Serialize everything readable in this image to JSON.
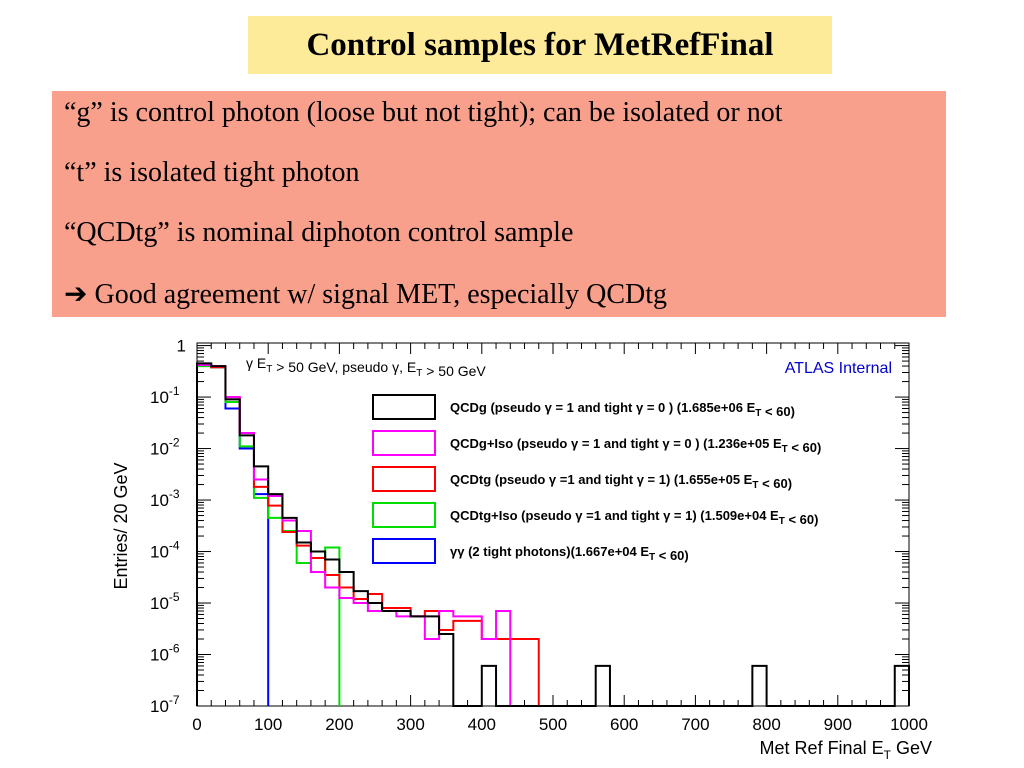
{
  "slide": {
    "title": "Control samples for MetRefFinal",
    "bullets": [
      "“g” is control photon (loose but not tight); can be isolated or not",
      "“t” is isolated tight photon",
      "“QCDtg” is nominal diphoton control sample",
      "Good agreement w/ signal MET, especially QCDtg"
    ],
    "arrow_glyph": "➔",
    "accent_colors": {
      "title_bg": "#fdeb9a",
      "box_bg": "#f9a08d"
    }
  },
  "chart_data": {
    "type": "step-histogram",
    "title": "",
    "annotation": "γ E_T > 50 GeV, pseudo γ, E_T > 50 GeV",
    "watermark": "ATLAS Internal",
    "xlabel": "Met Ref Final E_T GeV",
    "ylabel": "Entries/ 20 GeV",
    "xlim": [
      0,
      1000
    ],
    "ylim_log10": [
      -7,
      0.05
    ],
    "log_y": true,
    "bin_width": 20,
    "x_ticks": [
      0,
      100,
      200,
      300,
      400,
      500,
      600,
      700,
      800,
      900,
      1000
    ],
    "y_ticks": [
      {
        "exp": 0,
        "base": "1",
        "sup": ""
      },
      {
        "exp": -1,
        "base": "10",
        "sup": "-1"
      },
      {
        "exp": -2,
        "base": "10",
        "sup": "-2"
      },
      {
        "exp": -3,
        "base": "10",
        "sup": "-3"
      },
      {
        "exp": -4,
        "base": "10",
        "sup": "-4"
      },
      {
        "exp": -5,
        "base": "10",
        "sup": "-5"
      },
      {
        "exp": -6,
        "base": "10",
        "sup": "-6"
      },
      {
        "exp": -7,
        "base": "10",
        "sup": "-7"
      }
    ],
    "legend_position": "top-right",
    "series": [
      {
        "name": "QCDg (pseudo γ = 1 and tight γ = 0 ) (1.685e+06  E_T < 60)",
        "color": "#000000",
        "values": [
          0.45,
          0.4,
          0.09,
          0.018,
          0.0045,
          0.0013,
          0.00045,
          0.00015,
          0.0001,
          7e-05,
          4e-05,
          1.7e-05,
          1e-05,
          7e-06,
          7e-06,
          5.5e-06,
          5.5e-06,
          2.5e-06,
          0,
          0,
          6e-07,
          0,
          0,
          0,
          0,
          0,
          0,
          0,
          6e-07,
          0,
          0,
          0,
          0,
          0,
          0,
          0,
          0,
          0,
          0,
          6e-07,
          0,
          0,
          0,
          0,
          0,
          0,
          0,
          0,
          0,
          6e-07
        ]
      },
      {
        "name": "QCDg+Iso (pseudo γ = 1 and tight γ = 0 ) (1.236e+05  E_T < 60)",
        "color": "#ff00ff",
        "values": [
          0.42,
          0.4,
          0.1,
          0.02,
          0.0025,
          0.0012,
          0.0004,
          0.00025,
          4e-05,
          2e-05,
          1.25e-05,
          1e-05,
          7e-06,
          7e-06,
          5.5e-06,
          5.5e-06,
          2e-06,
          7e-06,
          5.5e-06,
          5.5e-06,
          2e-06,
          7e-06
        ]
      },
      {
        "name": "QCDtg (pseudo γ =1 and tight γ = 1)  (1.655e+05  E_T < 60)",
        "color": "#ff0000",
        "values": [
          0.42,
          0.38,
          0.1,
          0.02,
          0.0018,
          0.00078,
          0.00024,
          0.00013,
          7.5e-05,
          3.5e-05,
          2e-05,
          1.2e-05,
          1.5e-05,
          8e-06,
          8e-06,
          5.5e-06,
          7e-06,
          3e-06,
          4.5e-06,
          4.5e-06,
          2e-06,
          2e-06,
          2e-06,
          2e-06
        ]
      },
      {
        "name": "QCDtg+Iso (pseudo γ =1 and tight γ = 1) (1.509e+04  E_T < 60)",
        "color": "#00dd00",
        "values": [
          0.4,
          0.38,
          0.08,
          0.011,
          0.0011,
          0.00045,
          0.00025,
          6e-05,
          4e-05,
          0.00012
        ]
      },
      {
        "name": "γγ (2 tight photons)(1.667e+04  E_T < 60)",
        "color": "#0000ff",
        "values": [
          0.42,
          0.38,
          0.06,
          0.01,
          0.0013
        ]
      }
    ]
  }
}
